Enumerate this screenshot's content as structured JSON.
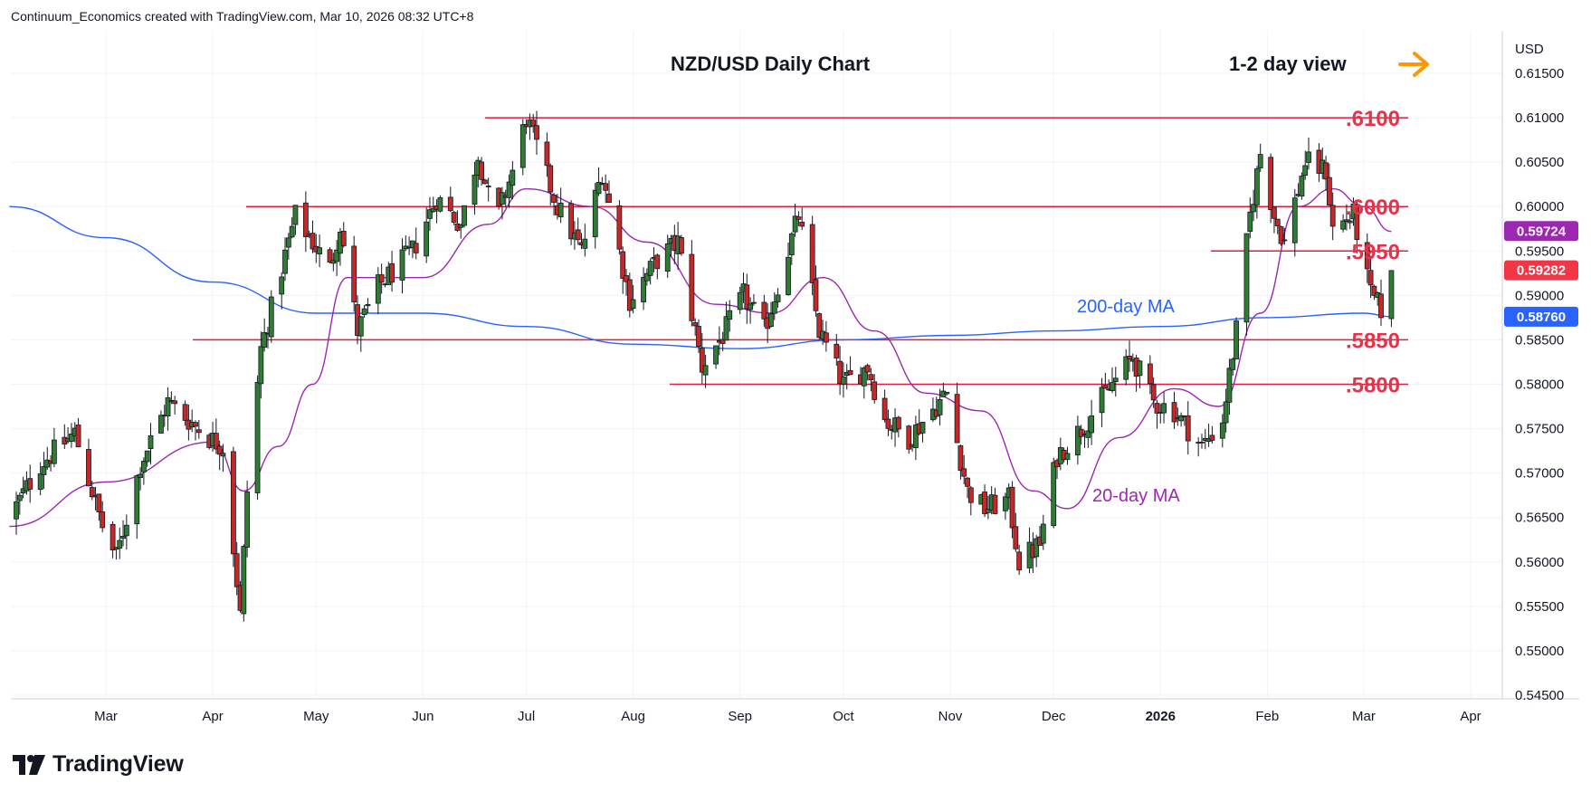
{
  "credit": "Continuum_Economics created with TradingView.com, Mar 10, 2026 08:32 UTC+8",
  "branding": {
    "logo_text": "TradingView"
  },
  "chart_data": {
    "type": "candlestick",
    "title": "NZD/USD Daily Chart",
    "view_label": "1-2 day view",
    "view_arrow": "right-arrow-icon",
    "currency": "USD",
    "ylim": [
      0.545,
      0.6185
    ],
    "y_ticks": [
      "0.61500",
      "0.61000",
      "0.60500",
      "0.60000",
      "0.59500",
      "0.59000",
      "0.58500",
      "0.58000",
      "0.57500",
      "0.57000",
      "0.56500",
      "0.56000",
      "0.55500",
      "0.55000",
      "0.54500"
    ],
    "x_ticks": [
      "Mar",
      "Apr",
      "May",
      "Jun",
      "Jul",
      "Aug",
      "Sep",
      "Oct",
      "Nov",
      "Dec",
      "2026",
      "Feb",
      "Mar",
      "Apr"
    ],
    "grid": true,
    "levels": [
      {
        "label": ".6100",
        "value": 0.61
      },
      {
        "label": ".6000",
        "value": 0.6
      },
      {
        "label": ".5950",
        "value": 0.595
      },
      {
        "label": ".5850",
        "value": 0.585
      },
      {
        "label": ".5800",
        "value": 0.58
      }
    ],
    "price_badges": [
      {
        "text": "0.59724",
        "value": 0.59724,
        "color": "#9c27b0"
      },
      {
        "text": "0.59282",
        "value": 0.59282,
        "color": "#f23645"
      },
      {
        "text": "0.58760",
        "value": 0.5876,
        "color": "#2962ff"
      }
    ],
    "ma_labels": [
      {
        "text": "200-day MA",
        "color": "#2962ff"
      },
      {
        "text": "20-day MA",
        "color": "#9c27b0"
      }
    ],
    "anchors": [
      [
        "2025-02-01",
        0.565
      ],
      [
        "2025-02-10",
        0.571
      ],
      [
        "2025-02-20",
        0.5745
      ],
      [
        "2025-02-28",
        0.564
      ],
      [
        "2025-03-04",
        0.5605
      ],
      [
        "2025-03-11",
        0.571
      ],
      [
        "2025-03-19",
        0.578
      ],
      [
        "2025-03-31",
        0.574
      ],
      [
        "2025-04-04",
        0.573
      ],
      [
        "2025-04-09",
        0.554
      ],
      [
        "2025-04-11",
        0.568
      ],
      [
        "2025-04-15",
        0.584
      ],
      [
        "2025-04-25",
        0.599
      ],
      [
        "2025-05-05",
        0.593
      ],
      [
        "2025-05-08",
        0.598
      ],
      [
        "2025-05-13",
        0.586
      ],
      [
        "2025-05-19",
        0.591
      ],
      [
        "2025-05-29",
        0.595
      ],
      [
        "2025-06-05",
        0.601
      ],
      [
        "2025-06-12",
        0.598
      ],
      [
        "2025-06-17",
        0.606
      ],
      [
        "2025-06-22",
        0.598
      ],
      [
        "2025-06-27",
        0.604
      ],
      [
        "2025-07-01",
        0.61
      ],
      [
        "2025-07-10",
        0.6
      ],
      [
        "2025-07-17",
        0.595
      ],
      [
        "2025-07-23",
        0.604
      ],
      [
        "2025-07-31",
        0.5895
      ],
      [
        "2025-08-08",
        0.594
      ],
      [
        "2025-08-14",
        0.596
      ],
      [
        "2025-08-21",
        0.582
      ],
      [
        "2025-08-27",
        0.5855
      ],
      [
        "2025-09-02",
        0.59
      ],
      [
        "2025-09-08",
        0.586
      ],
      [
        "2025-09-18",
        0.599
      ],
      [
        "2025-09-24",
        0.586
      ],
      [
        "2025-10-01",
        0.58
      ],
      [
        "2025-10-08",
        0.582
      ],
      [
        "2025-10-13",
        0.576
      ],
      [
        "2025-10-20",
        0.574
      ],
      [
        "2025-10-31",
        0.579
      ],
      [
        "2025-11-06",
        0.568
      ],
      [
        "2025-11-11",
        0.566
      ],
      [
        "2025-11-18",
        0.567
      ],
      [
        "2025-11-21",
        0.56
      ],
      [
        "2025-11-27",
        0.562
      ],
      [
        "2025-12-02",
        0.572
      ],
      [
        "2025-12-09",
        0.575
      ],
      [
        "2025-12-18",
        0.58
      ],
      [
        "2025-12-24",
        0.583
      ],
      [
        "2025-12-30",
        0.578
      ],
      [
        "2026-01-05",
        0.577
      ],
      [
        "2026-01-13",
        0.573
      ],
      [
        "2026-01-19",
        0.576
      ],
      [
        "2026-01-23",
        0.586
      ],
      [
        "2026-01-27",
        0.599
      ],
      [
        "2026-01-30",
        0.606
      ],
      [
        "2026-02-03",
        0.599
      ],
      [
        "2026-02-06",
        0.596
      ],
      [
        "2026-02-12",
        0.605
      ],
      [
        "2026-02-18",
        0.604
      ],
      [
        "2026-02-20",
        0.5975
      ],
      [
        "2026-02-26",
        0.599
      ],
      [
        "2026-03-03",
        0.59
      ],
      [
        "2026-03-06",
        0.5885
      ],
      [
        "2026-03-09",
        0.5928
      ]
    ],
    "sma20": [
      [
        "2025-02-01",
        0.564
      ],
      [
        "2025-03-01",
        0.569
      ],
      [
        "2025-04-01",
        0.5735
      ],
      [
        "2025-04-10",
        0.568
      ],
      [
        "2025-04-20",
        0.573
      ],
      [
        "2025-04-30",
        0.58
      ],
      [
        "2025-05-10",
        0.592
      ],
      [
        "2025-06-01",
        0.592
      ],
      [
        "2025-06-20",
        0.598
      ],
      [
        "2025-07-01",
        0.602
      ],
      [
        "2025-07-20",
        0.6
      ],
      [
        "2025-08-05",
        0.596
      ],
      [
        "2025-08-25",
        0.589
      ],
      [
        "2025-09-10",
        0.588
      ],
      [
        "2025-09-25",
        0.592
      ],
      [
        "2025-10-10",
        0.586
      ],
      [
        "2025-10-25",
        0.579
      ],
      [
        "2025-11-10",
        0.577
      ],
      [
        "2025-11-25",
        0.568
      ],
      [
        "2025-12-05",
        0.566
      ],
      [
        "2025-12-20",
        0.574
      ],
      [
        "2026-01-05",
        0.5795
      ],
      [
        "2026-01-18",
        0.5775
      ],
      [
        "2026-01-30",
        0.588
      ],
      [
        "2026-02-10",
        0.6
      ],
      [
        "2026-02-20",
        0.602
      ],
      [
        "2026-03-01",
        0.6
      ],
      [
        "2026-03-09",
        0.5972
      ]
    ],
    "sma200": [
      [
        "2025-02-01",
        0.6
      ],
      [
        "2025-03-01",
        0.5965
      ],
      [
        "2025-04-01",
        0.5915
      ],
      [
        "2025-05-01",
        0.588
      ],
      [
        "2025-06-01",
        0.588
      ],
      [
        "2025-07-01",
        0.5865
      ],
      [
        "2025-08-01",
        0.5845
      ],
      [
        "2025-09-01",
        0.584
      ],
      [
        "2025-10-01",
        0.585
      ],
      [
        "2025-11-01",
        0.5855
      ],
      [
        "2025-12-01",
        0.586
      ],
      [
        "2026-01-01",
        0.5865
      ],
      [
        "2026-02-01",
        0.5875
      ],
      [
        "2026-03-01",
        0.588
      ],
      [
        "2026-03-09",
        0.5876
      ]
    ]
  }
}
